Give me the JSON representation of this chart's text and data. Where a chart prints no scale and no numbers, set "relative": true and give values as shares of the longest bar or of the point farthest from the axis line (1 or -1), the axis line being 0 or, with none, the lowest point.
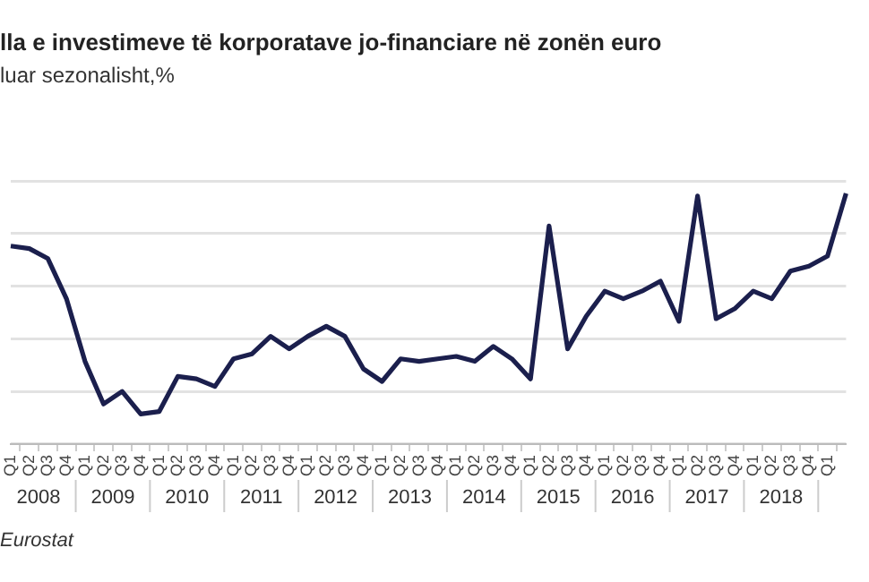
{
  "chart_data": {
    "type": "line",
    "title": "lla e investimeve të korporatave jo-financiare në zonën euro",
    "subtitle": "luar sezonalisht,%",
    "relative": true,
    "grid": "y",
    "legend": false,
    "marker": "none",
    "line_style": "solid",
    "categories": [
      "Q1",
      "Q2",
      "Q3",
      "Q4",
      "Q1",
      "Q2",
      "Q3",
      "Q4",
      "Q1",
      "Q2",
      "Q3",
      "Q4",
      "Q1",
      "Q2",
      "Q3",
      "Q4",
      "Q1",
      "Q2",
      "Q3",
      "Q4",
      "Q1",
      "Q2",
      "Q3",
      "Q4",
      "Q1",
      "Q2",
      "Q3",
      "Q4",
      "Q1",
      "Q2",
      "Q3",
      "Q4",
      "Q1",
      "Q2",
      "Q3",
      "Q4",
      "Q1",
      "Q2",
      "Q3",
      "Q4",
      "Q1",
      "Q2",
      "Q3",
      "Q4",
      "Q1",
      null
    ],
    "series": [
      {
        "color": "#1b1f4d",
        "values": [
          0.79,
          0.78,
          0.74,
          0.58,
          0.33,
          0.16,
          0.21,
          0.12,
          0.13,
          0.27,
          0.26,
          0.23,
          0.34,
          0.36,
          0.43,
          0.38,
          0.43,
          0.47,
          0.43,
          0.3,
          0.25,
          0.34,
          0.33,
          0.34,
          0.35,
          0.33,
          0.39,
          0.34,
          0.26,
          0.87,
          0.38,
          0.51,
          0.61,
          0.58,
          0.61,
          0.65,
          0.49,
          0.99,
          0.5,
          0.54,
          0.61,
          0.58,
          0.69,
          0.71,
          0.75,
          1
        ]
      }
    ],
    "annotations": [
      "2008",
      "2009",
      "2010",
      "2011",
      "2012",
      "2013",
      "2014",
      "2015",
      "2016",
      "2017",
      "2018",
      "Eurostat"
    ]
  }
}
